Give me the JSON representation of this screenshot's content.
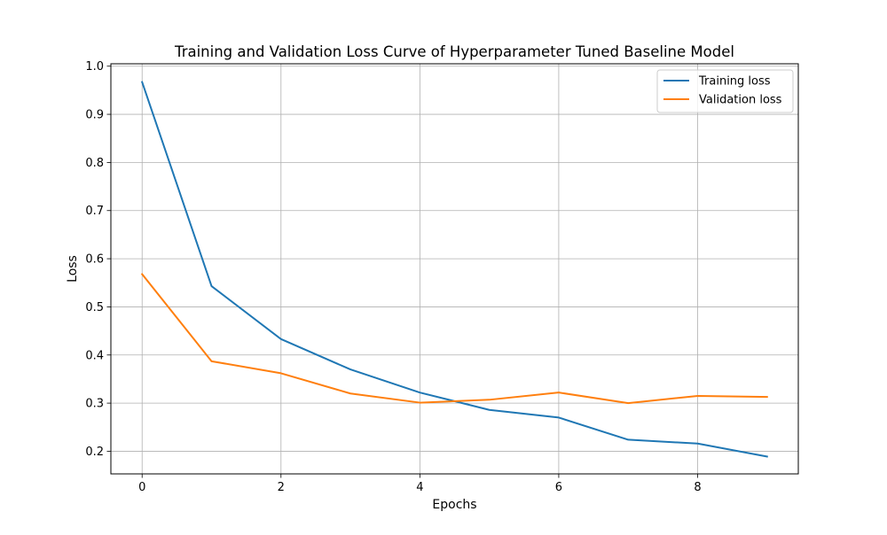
{
  "chart_data": {
    "type": "line",
    "title": "Training and Validation Loss Curve of Hyperparameter Tuned Baseline Model",
    "xlabel": "Epochs",
    "ylabel": "Loss",
    "x": [
      0,
      1,
      2,
      3,
      4,
      5,
      6,
      7,
      8,
      9
    ],
    "xlim": [
      -0.45,
      9.45
    ],
    "ylim": [
      0.153,
      1.005
    ],
    "xticks": [
      0,
      2,
      4,
      6,
      8
    ],
    "yticks": [
      0.2,
      0.3,
      0.4,
      0.5,
      0.6,
      0.7,
      0.8,
      0.9,
      1.0
    ],
    "xtick_labels": [
      "0",
      "2",
      "4",
      "6",
      "8"
    ],
    "ytick_labels": [
      "0.2",
      "0.3",
      "0.4",
      "0.5",
      "0.6",
      "0.7",
      "0.8",
      "0.9",
      "1.0"
    ],
    "grid": true,
    "legend_position": "top-right",
    "series": [
      {
        "name": "Training loss",
        "color": "#1f77b4",
        "values": [
          0.967,
          0.543,
          0.433,
          0.37,
          0.322,
          0.286,
          0.27,
          0.224,
          0.216,
          0.189
        ]
      },
      {
        "name": "Validation loss",
        "color": "#ff7f0e",
        "values": [
          0.568,
          0.387,
          0.362,
          0.32,
          0.301,
          0.307,
          0.322,
          0.3,
          0.315,
          0.313
        ]
      }
    ]
  }
}
